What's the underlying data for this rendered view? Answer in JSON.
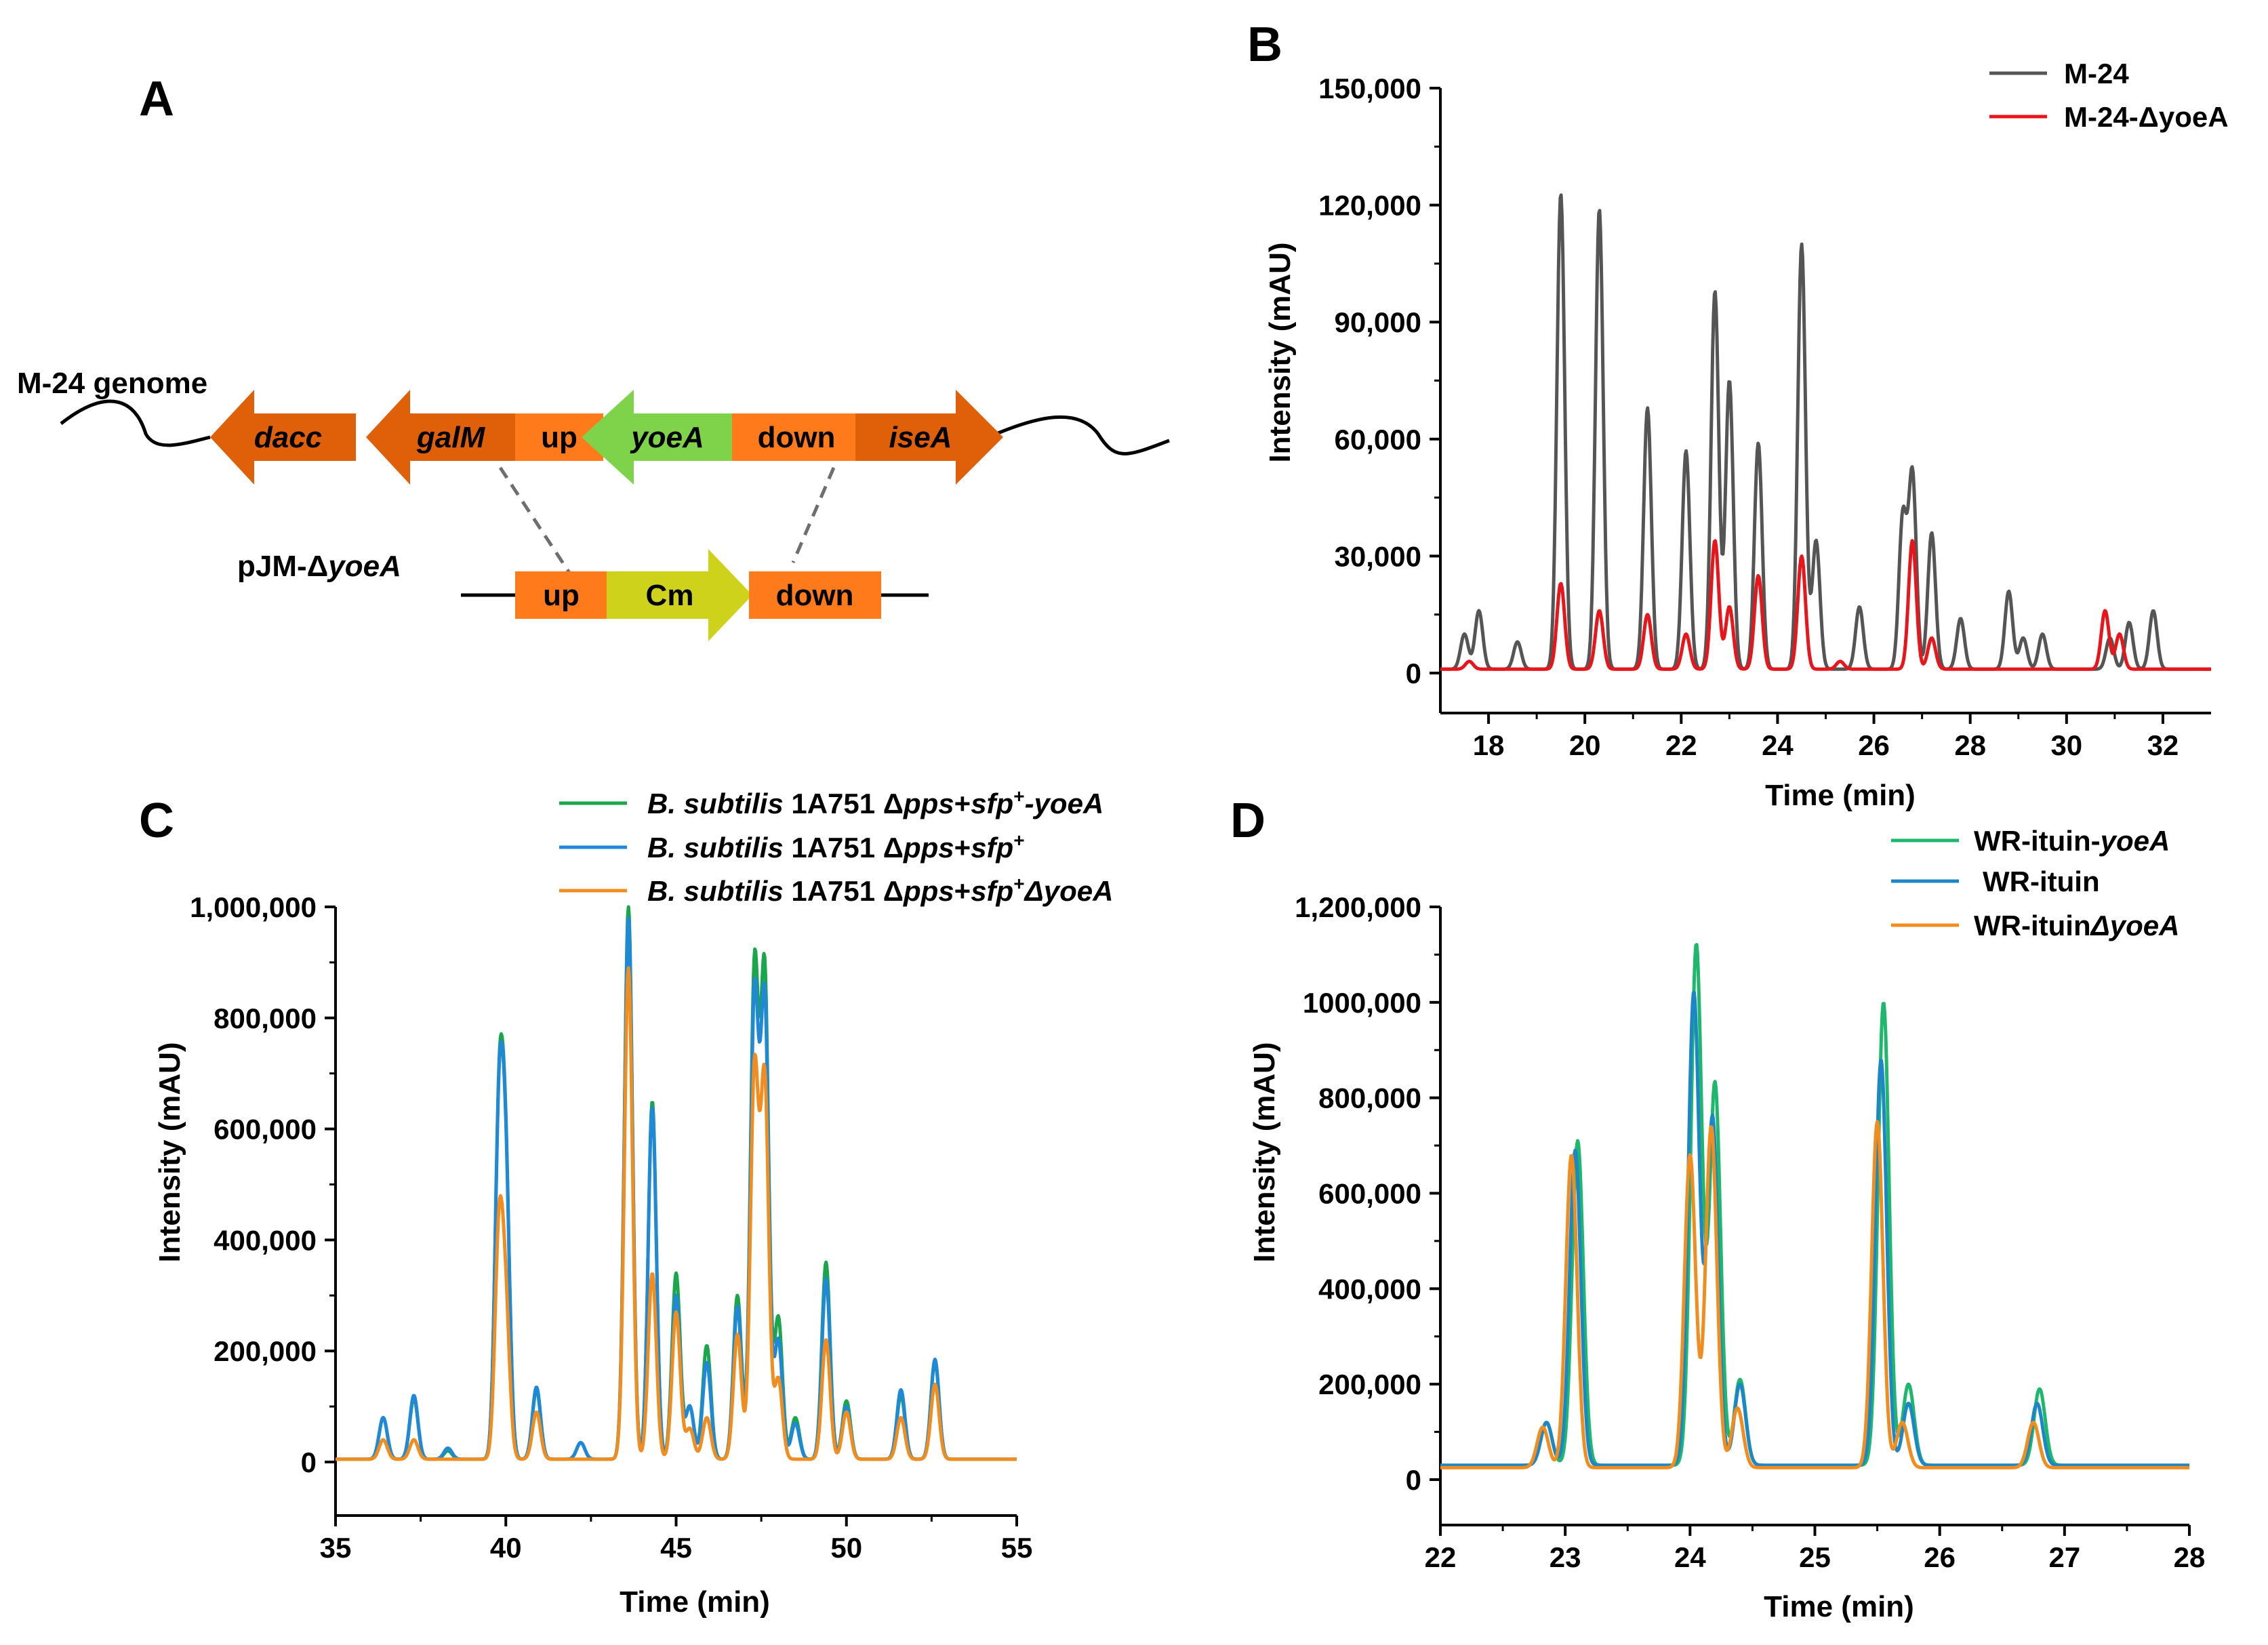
{
  "panel_letters": {
    "a": "A",
    "b": "B",
    "c": "C",
    "d": "D"
  },
  "panel_a": {
    "genome_label": "M-24 genome",
    "plasmid_label_prefix": "pJM-Δ",
    "plasmid_label_italic": "yoeA",
    "genome_genes": [
      {
        "label": "dacc",
        "italic": true,
        "color": "#e0600a"
      },
      {
        "label": "galM",
        "italic": true,
        "color": "#e0600a"
      },
      {
        "label": "up",
        "italic": false,
        "color": "#ff7a1a"
      },
      {
        "label": "yoeA",
        "italic": true,
        "color": "#7ed34a"
      },
      {
        "label": "down",
        "italic": false,
        "color": "#ff7a1a"
      },
      {
        "label": "iseA",
        "italic": true,
        "color": "#e0600a"
      }
    ],
    "plasmid_genes": [
      {
        "label": "up",
        "color": "#ff7a1a"
      },
      {
        "label": "Cm",
        "color": "#cfd21a"
      },
      {
        "label": "down",
        "color": "#ff7a1a"
      }
    ]
  },
  "chart_data": [
    {
      "id": "B",
      "type": "line",
      "xlabel": "Time (min)",
      "ylabel": "Intensity (mAU)",
      "xlim": [
        17,
        33
      ],
      "ylim": [
        -10000,
        150000
      ],
      "xticks": [
        18,
        20,
        22,
        24,
        26,
        28,
        30,
        32
      ],
      "xtick_labels": [
        "18",
        "20",
        "22",
        "24",
        "26",
        "28",
        "30",
        "32"
      ],
      "yticks": [
        0,
        30000,
        60000,
        90000,
        120000,
        150000
      ],
      "ytick_labels": [
        "0",
        "30,000",
        "60,000",
        "90,000",
        "120,000",
        "150,000"
      ],
      "legend": [
        "M-24",
        "M-24-ΔyoeA"
      ],
      "peak_width": 0.08,
      "series": [
        {
          "name": "M-24",
          "color": "#555555",
          "baseline": 1000,
          "peaks": [
            [
              17.5,
              10000
            ],
            [
              17.8,
              16000
            ],
            [
              18.6,
              8000
            ],
            [
              19.5,
              123000
            ],
            [
              20.3,
              119000
            ],
            [
              21.3,
              68000
            ],
            [
              22.1,
              57000
            ],
            [
              22.7,
              98000
            ],
            [
              23.0,
              75000
            ],
            [
              23.6,
              59000
            ],
            [
              24.5,
              110000
            ],
            [
              24.8,
              34000
            ],
            [
              25.7,
              17000
            ],
            [
              26.6,
              40000
            ],
            [
              26.8,
              51000
            ],
            [
              27.2,
              36000
            ],
            [
              27.8,
              14000
            ],
            [
              28.8,
              21000
            ],
            [
              29.1,
              9000
            ],
            [
              29.5,
              10000
            ],
            [
              30.9,
              9000
            ],
            [
              31.3,
              13000
            ],
            [
              31.8,
              16000
            ]
          ]
        },
        {
          "name": "M-24-ΔyoeA",
          "color": "#e8151b",
          "baseline": 1000,
          "peaks": [
            [
              17.6,
              3000
            ],
            [
              19.5,
              23000
            ],
            [
              20.3,
              16000
            ],
            [
              21.3,
              15000
            ],
            [
              22.1,
              10000
            ],
            [
              22.7,
              34000
            ],
            [
              23.0,
              17000
            ],
            [
              23.6,
              25000
            ],
            [
              24.5,
              30000
            ],
            [
              25.3,
              3000
            ],
            [
              26.8,
              34000
            ],
            [
              27.2,
              9000
            ],
            [
              30.8,
              16000
            ],
            [
              31.1,
              10000
            ]
          ]
        }
      ]
    },
    {
      "id": "C",
      "type": "line",
      "xlabel": "Time (min)",
      "ylabel": "Intensity (mAU)",
      "xlim": [
        35,
        55
      ],
      "ylim": [
        -100000,
        1000000
      ],
      "xticks": [
        35,
        40,
        45,
        50,
        55
      ],
      "xtick_labels": [
        "35",
        "40",
        "45",
        "50",
        "55"
      ],
      "yticks": [
        0,
        200000,
        400000,
        600000,
        800000,
        1000000
      ],
      "ytick_labels": [
        "0",
        "200,000",
        "400,000",
        "600,000",
        "800,000",
        "1,000,000"
      ],
      "legend_series": [
        {
          "italic1": "B. subtilis",
          "plain1": " 1A751 Δ",
          "italic2": "pps",
          "plain2": "+",
          "italic3": "sfp",
          "sup": "+",
          "italic4": "-yoeA"
        },
        {
          "italic1": "B. subtilis",
          "plain1": " 1A751 Δ",
          "italic2": "pps",
          "plain2": "+",
          "italic3": "sfp",
          "sup": "+",
          "italic4": ""
        },
        {
          "italic1": "B. subtilis",
          "plain1": " 1A751 Δ",
          "italic2": "pps",
          "plain2": "+",
          "italic3": "sfp",
          "sup": "+",
          "italic4": "ΔyoeA"
        }
      ],
      "peak_width": 0.12,
      "series": [
        {
          "name": "B. subtilis 1A751 Δpps+sfp+-yoeA",
          "color": "#1aa64a",
          "baseline": 5000,
          "peaks": [
            [
              36.4,
              80000
            ],
            [
              37.3,
              115000
            ],
            [
              38.3,
              20000
            ],
            [
              39.8,
              600000
            ],
            [
              40.0,
              480000
            ],
            [
              40.9,
              130000
            ],
            [
              42.2,
              35000
            ],
            [
              43.6,
              1000000
            ],
            [
              44.3,
              650000
            ],
            [
              45.0,
              340000
            ],
            [
              45.4,
              100000
            ],
            [
              45.9,
              210000
            ],
            [
              46.8,
              300000
            ],
            [
              47.3,
              880000
            ],
            [
              47.6,
              870000
            ],
            [
              48.0,
              260000
            ],
            [
              48.5,
              80000
            ],
            [
              49.4,
              360000
            ],
            [
              50.0,
              110000
            ],
            [
              51.6,
              120000
            ],
            [
              52.6,
              180000
            ]
          ]
        },
        {
          "name": "B. subtilis 1A751 Δpps+sfp+",
          "color": "#1f88d8",
          "baseline": 5000,
          "peaks": [
            [
              36.4,
              80000
            ],
            [
              37.3,
              120000
            ],
            [
              38.3,
              25000
            ],
            [
              39.8,
              590000
            ],
            [
              40.0,
              470000
            ],
            [
              40.9,
              135000
            ],
            [
              42.2,
              35000
            ],
            [
              43.6,
              980000
            ],
            [
              44.3,
              640000
            ],
            [
              45.0,
              300000
            ],
            [
              45.4,
              100000
            ],
            [
              45.9,
              180000
            ],
            [
              46.8,
              280000
            ],
            [
              47.3,
              830000
            ],
            [
              47.6,
              820000
            ],
            [
              48.0,
              220000
            ],
            [
              48.5,
              70000
            ],
            [
              49.4,
              330000
            ],
            [
              50.0,
              100000
            ],
            [
              51.6,
              130000
            ],
            [
              52.6,
              185000
            ]
          ]
        },
        {
          "name": "B. subtilis 1A751 Δpps+sfp+ΔyoeA",
          "color": "#f08d1e",
          "baseline": 5000,
          "peaks": [
            [
              36.4,
              40000
            ],
            [
              37.3,
              40000
            ],
            [
              39.8,
              400000
            ],
            [
              40.0,
              250000
            ],
            [
              40.9,
              90000
            ],
            [
              43.6,
              890000
            ],
            [
              44.3,
              340000
            ],
            [
              45.0,
              270000
            ],
            [
              45.4,
              60000
            ],
            [
              45.9,
              80000
            ],
            [
              46.8,
              230000
            ],
            [
              47.3,
              700000
            ],
            [
              47.6,
              680000
            ],
            [
              48.0,
              150000
            ],
            [
              49.4,
              220000
            ],
            [
              50.0,
              90000
            ],
            [
              51.6,
              80000
            ],
            [
              52.6,
              140000
            ]
          ]
        }
      ]
    },
    {
      "id": "D",
      "type": "line",
      "xlabel": "Time (min)",
      "ylabel": "Intensity (mAU)",
      "xlim": [
        22,
        28
      ],
      "ylim": [
        -100000,
        1200000
      ],
      "xticks": [
        22,
        23,
        24,
        25,
        26,
        27,
        28
      ],
      "xtick_labels": [
        "22",
        "23",
        "24",
        "25",
        "26",
        "27",
        "28"
      ],
      "yticks": [
        0,
        200000,
        400000,
        600000,
        800000,
        1000000,
        1200000
      ],
      "ytick_labels": [
        "0",
        "200,000",
        "400,000",
        "600,000",
        "800,000",
        "1000,000",
        "1,200,000"
      ],
      "legend_series": [
        {
          "plain": "WR-ituin-",
          "italic": "yoeA"
        },
        {
          "plain": "WR-ituin",
          "italic": ""
        },
        {
          "plain": "WR-ituin",
          "italic": "ΔyoeA"
        }
      ],
      "peak_width": 0.045,
      "series": [
        {
          "name": "WR-ituin-yoeA",
          "color": "#1db86c",
          "baseline": 30000,
          "peaks": [
            [
              22.85,
              120000
            ],
            [
              23.1,
              710000
            ],
            [
              24.05,
              1120000
            ],
            [
              24.2,
              830000
            ],
            [
              24.4,
              210000
            ],
            [
              25.55,
              1000000
            ],
            [
              25.75,
              200000
            ],
            [
              26.8,
              190000
            ]
          ]
        },
        {
          "name": "WR-ituin",
          "color": "#1d86c6",
          "baseline": 30000,
          "peaks": [
            [
              22.85,
              120000
            ],
            [
              23.08,
              690000
            ],
            [
              24.03,
              1020000
            ],
            [
              24.18,
              760000
            ],
            [
              24.4,
              200000
            ],
            [
              25.53,
              880000
            ],
            [
              25.75,
              160000
            ],
            [
              26.78,
              160000
            ]
          ]
        },
        {
          "name": "WR-ituinΔyoeA",
          "color": "#f08d1e",
          "baseline": 25000,
          "peaks": [
            [
              22.82,
              110000
            ],
            [
              23.05,
              680000
            ],
            [
              24.0,
              680000
            ],
            [
              24.17,
              740000
            ],
            [
              24.38,
              150000
            ],
            [
              25.5,
              750000
            ],
            [
              25.7,
              120000
            ],
            [
              26.75,
              120000
            ]
          ]
        }
      ]
    }
  ]
}
